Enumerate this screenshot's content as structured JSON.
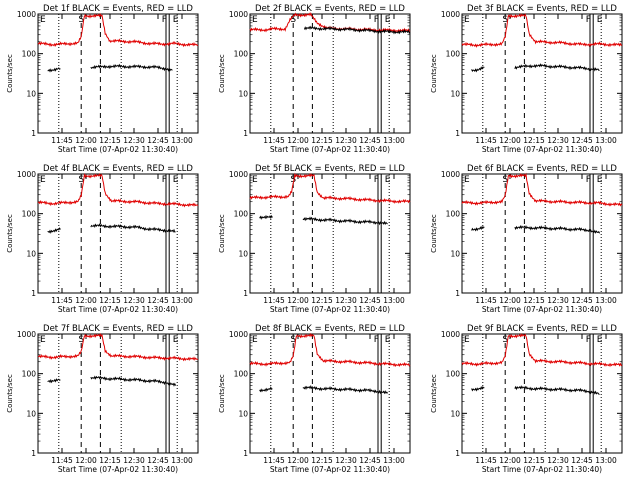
{
  "figure": {
    "ylabel": "Counts/sec",
    "xlabel": "Start Time (07-Apr-02 11:30:40)",
    "x_ticks": [
      "11:45",
      "12:00",
      "12:15",
      "12:30",
      "12:45",
      "13:00"
    ],
    "y_ticks": [
      "1",
      "10",
      "100",
      "1000"
    ],
    "marker_labels": {
      "left_e": "E",
      "s": "S",
      "f": "F",
      "right_e": "E"
    },
    "colors": {
      "events": "#000000",
      "lld": "#e00000"
    }
  },
  "chart_data": [
    {
      "type": "line",
      "title": "Det 1f BLACK = Events, RED = LLD",
      "xlabel": "Start Time (07-Apr-02 11:30:40)",
      "ylabel": "Counts/sec",
      "yscale": "log",
      "ylim": [
        1,
        1000
      ],
      "x_range_minutes_since_start": [
        0,
        100
      ],
      "series": [
        {
          "name": "LLD",
          "color": "#e00000",
          "points": [
            [
              0,
              180
            ],
            [
              10,
              170
            ],
            [
              25,
              185
            ],
            [
              27,
              260
            ],
            [
              29,
              900
            ],
            [
              40,
              900
            ],
            [
              42,
              330
            ],
            [
              45,
              210
            ],
            [
              60,
              200
            ],
            [
              70,
              180
            ],
            [
              78,
              175
            ],
            [
              85,
              180
            ],
            [
              92,
              170
            ],
            [
              100,
              165
            ]
          ]
        },
        {
          "name": "Events",
          "color": "#000000",
          "points": [
            [
              6,
              38
            ],
            [
              10,
              40
            ],
            [
              14,
              42
            ],
            [
              null,
              null
            ],
            [
              33,
              45
            ],
            [
              45,
              48
            ],
            [
              60,
              47
            ],
            [
              72,
              46
            ],
            [
              80,
              42
            ],
            [
              84,
              38
            ]
          ]
        }
      ]
    },
    {
      "type": "line",
      "title": "Det 2f BLACK = Events, RED = LLD",
      "xlabel": "Start Time (07-Apr-02 11:30:40)",
      "ylabel": "Counts/sec",
      "yscale": "log",
      "ylim": [
        1,
        1000
      ],
      "x_range_minutes_since_start": [
        0,
        100
      ],
      "series": [
        {
          "name": "LLD",
          "color": "#e00000",
          "points": [
            [
              0,
              400
            ],
            [
              10,
              400
            ],
            [
              14,
              420
            ],
            [
              22,
              420
            ],
            [
              25,
              700
            ],
            [
              28,
              950
            ],
            [
              38,
              950
            ],
            [
              42,
              600
            ],
            [
              48,
              440
            ],
            [
              60,
              420
            ],
            [
              75,
              400
            ],
            [
              85,
              390
            ],
            [
              100,
              380
            ]
          ]
        },
        {
          "name": "Events",
          "color": "#000000",
          "points": [
            [
              34,
              440
            ],
            [
              45,
              430
            ],
            [
              60,
              410
            ],
            [
              75,
              380
            ],
            [
              85,
              360
            ],
            [
              100,
              350
            ]
          ]
        }
      ]
    },
    {
      "type": "line",
      "title": "Det 3f BLACK = Events, RED = LLD",
      "xlabel": "Start Time (07-Apr-02 11:30:40)",
      "ylabel": "Counts/sec",
      "yscale": "log",
      "ylim": [
        1,
        1000
      ],
      "x_range_minutes_since_start": [
        0,
        100
      ],
      "series": [
        {
          "name": "LLD",
          "color": "#e00000",
          "points": [
            [
              0,
              170
            ],
            [
              10,
              165
            ],
            [
              25,
              175
            ],
            [
              27,
              260
            ],
            [
              29,
              900
            ],
            [
              40,
              900
            ],
            [
              42,
              320
            ],
            [
              46,
              200
            ],
            [
              60,
              190
            ],
            [
              75,
              170
            ],
            [
              85,
              175
            ],
            [
              100,
              165
            ]
          ]
        },
        {
          "name": "Events",
          "color": "#000000",
          "points": [
            [
              6,
              38
            ],
            [
              10,
              40
            ],
            [
              14,
              45
            ],
            [
              null,
              null
            ],
            [
              33,
              45
            ],
            [
              45,
              50
            ],
            [
              60,
              47
            ],
            [
              72,
              44
            ],
            [
              80,
              42
            ],
            [
              86,
              38
            ]
          ]
        }
      ]
    },
    {
      "type": "line",
      "title": "Det 4f BLACK = Events, RED = LLD",
      "xlabel": "Start Time (07-Apr-02 11:30:40)",
      "ylabel": "Counts/sec",
      "yscale": "log",
      "ylim": [
        1,
        1000
      ],
      "x_range_minutes_since_start": [
        0,
        100
      ],
      "series": [
        {
          "name": "LLD",
          "color": "#e00000",
          "points": [
            [
              0,
              190
            ],
            [
              10,
              180
            ],
            [
              25,
              200
            ],
            [
              27,
              280
            ],
            [
              29,
              900
            ],
            [
              40,
              900
            ],
            [
              42,
              330
            ],
            [
              46,
              210
            ],
            [
              60,
              200
            ],
            [
              75,
              180
            ],
            [
              85,
              175
            ],
            [
              100,
              160
            ]
          ]
        },
        {
          "name": "Events",
          "color": "#000000",
          "points": [
            [
              6,
              35
            ],
            [
              10,
              38
            ],
            [
              14,
              40
            ],
            [
              null,
              null
            ],
            [
              33,
              50
            ],
            [
              45,
              48
            ],
            [
              60,
              46
            ],
            [
              72,
              40
            ],
            [
              80,
              38
            ],
            [
              86,
              35
            ]
          ]
        }
      ]
    },
    {
      "type": "line",
      "title": "Det 5f BLACK = Events, RED = LLD",
      "xlabel": "Start Time (07-Apr-02 11:30:40)",
      "ylabel": "Counts/sec",
      "yscale": "log",
      "ylim": [
        1,
        1000
      ],
      "x_range_minutes_since_start": [
        0,
        100
      ],
      "series": [
        {
          "name": "LLD",
          "color": "#e00000",
          "points": [
            [
              0,
              250
            ],
            [
              10,
              260
            ],
            [
              24,
              270
            ],
            [
              26,
              350
            ],
            [
              28,
              900
            ],
            [
              40,
              900
            ],
            [
              42,
              350
            ],
            [
              46,
              250
            ],
            [
              60,
              240
            ],
            [
              75,
              220
            ],
            [
              85,
              210
            ],
            [
              100,
              200
            ]
          ]
        },
        {
          "name": "Events",
          "color": "#000000",
          "points": [
            [
              6,
              80
            ],
            [
              10,
              85
            ],
            [
              14,
              80
            ],
            [
              null,
              null
            ],
            [
              33,
              75
            ],
            [
              45,
              70
            ],
            [
              60,
              65
            ],
            [
              72,
              62
            ],
            [
              80,
              60
            ],
            [
              86,
              55
            ]
          ]
        }
      ]
    },
    {
      "type": "line",
      "title": "Det 6f BLACK = Events, RED = LLD",
      "xlabel": "Start Time (07-Apr-02 11:30:40)",
      "ylabel": "Counts/sec",
      "yscale": "log",
      "ylim": [
        1,
        1000
      ],
      "x_range_minutes_since_start": [
        0,
        100
      ],
      "series": [
        {
          "name": "LLD",
          "color": "#e00000",
          "points": [
            [
              0,
              190
            ],
            [
              10,
              185
            ],
            [
              25,
              200
            ],
            [
              27,
              280
            ],
            [
              29,
              900
            ],
            [
              40,
              900
            ],
            [
              42,
              330
            ],
            [
              46,
              210
            ],
            [
              60,
              200
            ],
            [
              75,
              190
            ],
            [
              85,
              185
            ],
            [
              100,
              165
            ]
          ]
        },
        {
          "name": "Events",
          "color": "#000000",
          "points": [
            [
              6,
              40
            ],
            [
              10,
              42
            ],
            [
              14,
              45
            ],
            [
              null,
              null
            ],
            [
              33,
              45
            ],
            [
              45,
              44
            ],
            [
              60,
              42
            ],
            [
              72,
              40
            ],
            [
              80,
              38
            ],
            [
              86,
              32
            ]
          ]
        }
      ]
    },
    {
      "type": "line",
      "title": "Det 7f BLACK = Events, RED = LLD",
      "xlabel": "Start Time (07-Apr-02 11:30:40)",
      "ylabel": "Counts/sec",
      "yscale": "log",
      "ylim": [
        1,
        1000
      ],
      "x_range_minutes_since_start": [
        0,
        100
      ],
      "series": [
        {
          "name": "LLD",
          "color": "#e00000",
          "points": [
            [
              0,
              270
            ],
            [
              10,
              260
            ],
            [
              25,
              280
            ],
            [
              27,
              350
            ],
            [
              29,
              900
            ],
            [
              40,
              900
            ],
            [
              42,
              380
            ],
            [
              46,
              280
            ],
            [
              60,
              270
            ],
            [
              75,
              250
            ],
            [
              85,
              245
            ],
            [
              100,
              230
            ]
          ]
        },
        {
          "name": "Events",
          "color": "#000000",
          "points": [
            [
              6,
              65
            ],
            [
              10,
              68
            ],
            [
              14,
              70
            ],
            [
              null,
              null
            ],
            [
              33,
              80
            ],
            [
              45,
              75
            ],
            [
              60,
              70
            ],
            [
              72,
              65
            ],
            [
              80,
              60
            ],
            [
              86,
              50
            ]
          ]
        }
      ]
    },
    {
      "type": "line",
      "title": "Det 8f BLACK = Events, RED = LLD",
      "xlabel": "Start Time (07-Apr-02 11:30:40)",
      "ylabel": "Counts/sec",
      "yscale": "log",
      "ylim": [
        1,
        1000
      ],
      "x_range_minutes_since_start": [
        0,
        100
      ],
      "series": [
        {
          "name": "LLD",
          "color": "#e00000",
          "points": [
            [
              0,
              180
            ],
            [
              10,
              175
            ],
            [
              25,
              190
            ],
            [
              27,
              270
            ],
            [
              29,
              900
            ],
            [
              40,
              900
            ],
            [
              42,
              320
            ],
            [
              46,
              210
            ],
            [
              60,
              200
            ],
            [
              75,
              185
            ],
            [
              85,
              175
            ],
            [
              100,
              165
            ]
          ]
        },
        {
          "name": "Events",
          "color": "#000000",
          "points": [
            [
              6,
              38
            ],
            [
              10,
              40
            ],
            [
              14,
              42
            ],
            [
              null,
              null
            ],
            [
              33,
              45
            ],
            [
              45,
              42
            ],
            [
              60,
              40
            ],
            [
              72,
              38
            ],
            [
              80,
              36
            ],
            [
              86,
              32
            ]
          ]
        }
      ]
    },
    {
      "type": "line",
      "title": "Det 9f BLACK = Events, RED = LLD",
      "xlabel": "Start Time (07-Apr-02 11:30:40)",
      "ylabel": "Counts/sec",
      "yscale": "log",
      "ylim": [
        1,
        1000
      ],
      "x_range_minutes_since_start": [
        0,
        100
      ],
      "series": [
        {
          "name": "LLD",
          "color": "#e00000",
          "points": [
            [
              0,
              180
            ],
            [
              10,
              175
            ],
            [
              25,
              190
            ],
            [
              27,
              270
            ],
            [
              29,
              900
            ],
            [
              40,
              900
            ],
            [
              42,
              320
            ],
            [
              46,
              210
            ],
            [
              60,
              200
            ],
            [
              75,
              185
            ],
            [
              85,
              175
            ],
            [
              100,
              165
            ]
          ]
        },
        {
          "name": "Events",
          "color": "#000000",
          "points": [
            [
              6,
              40
            ],
            [
              10,
              42
            ],
            [
              14,
              44
            ],
            [
              null,
              null
            ],
            [
              33,
              45
            ],
            [
              45,
              42
            ],
            [
              60,
              40
            ],
            [
              72,
              38
            ],
            [
              80,
              36
            ],
            [
              86,
              30
            ]
          ]
        }
      ]
    }
  ]
}
